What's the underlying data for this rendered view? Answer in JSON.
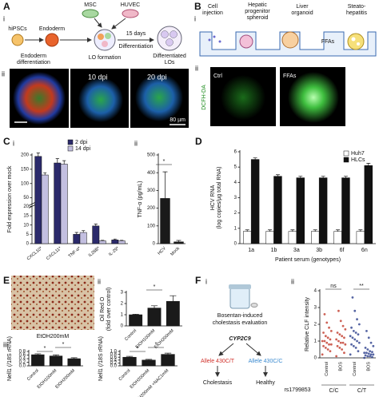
{
  "panels": {
    "A": {
      "label": "A",
      "i": {
        "label": "i",
        "hipsc": "hiPSCs",
        "endoderm": "Endoderm",
        "msc": "MSC",
        "huvec": "HUVEC",
        "endoderm_diff": [
          "Endoderm",
          "differentiation"
        ],
        "lo_formation": "LO formation",
        "days": "15 days",
        "differentiation": "Differentiation",
        "differentiated": [
          "Differentiated",
          "LOs"
        ]
      },
      "ii": {
        "label": "ii",
        "t1": "10 dpi",
        "t2": "20 dpi",
        "scale": "80 µm"
      }
    },
    "B": {
      "label": "B",
      "i": {
        "label": "i",
        "cell_injection": [
          "Cell",
          "injection"
        ],
        "spheroid": [
          "Hepatic",
          "progenitor",
          "spheroid"
        ],
        "organoid": [
          "Liver",
          "organoid"
        ],
        "steato": [
          "Steato-",
          "hepatitis"
        ],
        "ffas": "FFAs"
      },
      "ii": {
        "label": "ii",
        "stain": "DCFH-DA",
        "ctrl": "Ctrl",
        "ffas": "FFAs"
      }
    },
    "C": {
      "label": "C",
      "i": "i",
      "ii": "ii"
    },
    "D": {
      "label": "D"
    },
    "E": {
      "label": "E",
      "i": "i",
      "ii": "ii",
      "iii": "iii",
      "caption": "EtOH200mM"
    },
    "F": {
      "label": "F",
      "i": {
        "label": "i",
        "title": [
          "Bosentan-induced",
          "cholestasis evaluation"
        ],
        "gene": "CYP2C9",
        "allele_ct": "Allele 430C/T",
        "allele_cc": "Allele 430C/C",
        "cholestasis": "Cholestasis",
        "healthy": "Healthy"
      },
      "ii": "ii"
    }
  },
  "chart_data": [
    {
      "type": "bar",
      "y_label": "Fold expression over mock",
      "categories": [
        "CXCL10*",
        "CXCL11*",
        "TNF-α*",
        "IL28B*",
        "IL-29*"
      ],
      "series": [
        {
          "name": "2 dpi",
          "color": "#2b2a6b",
          "values": [
            195,
            172,
            5,
            9.5,
            2
          ],
          "errors": [
            12,
            15,
            1,
            1,
            0.5
          ]
        },
        {
          "name": "14 dpi",
          "color": "#c3bfe0",
          "values": [
            130,
            168,
            6,
            1.5,
            1.5
          ],
          "errors": [
            8,
            12,
            1,
            0.3,
            0.3
          ]
        }
      ],
      "ylim": [
        0,
        200
      ],
      "yticks": [
        0,
        5,
        10,
        15,
        20,
        50,
        100,
        150,
        200
      ],
      "y_break": 20
    },
    {
      "type": "bar",
      "y_label": "TNF-α (pg/mL)",
      "categories": [
        "HCV",
        "Mock"
      ],
      "values": [
        255,
        10
      ],
      "errors": [
        150,
        8
      ],
      "color": "#1a1a1a",
      "ylim": [
        0,
        500
      ],
      "yticks": [
        0,
        100,
        200,
        300,
        400,
        500
      ],
      "annotations": [
        "*"
      ]
    },
    {
      "type": "bar",
      "y_label": [
        "HCV RNA",
        "(log copies/µg total RNA)"
      ],
      "x_label": "Patient serum (genotypes)",
      "categories": [
        "1a",
        "1b",
        "3a",
        "3b",
        "6f",
        "6n"
      ],
      "series": [
        {
          "name": "Huh7",
          "color": "#ffffff",
          "values": [
            0.8,
            0.8,
            0.8,
            0.8,
            0.8,
            0.8
          ],
          "errors": [
            0.1,
            0.1,
            0.1,
            0.1,
            0.1,
            0.1
          ]
        },
        {
          "name": "HLCs",
          "color": "#111111",
          "values": [
            5.5,
            4.4,
            4.3,
            4.3,
            4.3,
            5.1
          ],
          "errors": [
            0.1,
            0.1,
            0.1,
            0.1,
            0.1,
            0.15
          ]
        }
      ],
      "ylim": [
        0,
        6
      ],
      "yticks": [
        0,
        1,
        2,
        3,
        4,
        5,
        6
      ],
      "legend": "top-right"
    },
    {
      "type": "bar",
      "y_label": [
        "Oil Red O",
        "(fold over control)"
      ],
      "categories": [
        "Control",
        "EtOH100mM",
        "EtOH200mM"
      ],
      "values": [
        1.0,
        1.6,
        2.2
      ],
      "errors": [
        0.05,
        0.2,
        0.5
      ],
      "color": "#1a1a1a",
      "ylim": [
        0,
        3
      ],
      "yticks": [
        0,
        1,
        2,
        3
      ],
      "annotations": [
        "*"
      ]
    },
    {
      "type": "bar",
      "y_label": "Nell1 (/18S rRNA)",
      "categories": [
        "Control",
        "EtOH100mM",
        "EtOH200mM"
      ],
      "values": [
        0.62,
        0.55,
        0.4
      ],
      "errors": [
        0.05,
        0.06,
        0.05
      ],
      "color": "#1a1a1a",
      "ylim": [
        0,
        0.8
      ],
      "yticks": [
        {
          "value": 0,
          "label": "0.0"
        },
        0.2,
        0.4,
        0.6,
        0.8
      ],
      "annotations": [
        "*",
        "*"
      ]
    },
    {
      "type": "bar",
      "y_label": "Nell1 (/18S rRNA)",
      "categories": [
        "Control",
        "EtOH200mM",
        "EtOH200mM +NAC1mM"
      ],
      "values": [
        0.6,
        0.4,
        0.8
      ],
      "errors": [
        0.06,
        0.05,
        0.08
      ],
      "color": "#1a1a1a",
      "ylim": [
        0,
        1
      ],
      "yticks": [
        {
          "value": 0,
          "label": "0.0"
        },
        0.2,
        0.4,
        0.6,
        0.8,
        {
          "value": 1,
          "label": "1.0"
        }
      ],
      "annotations": [
        "*",
        "*"
      ]
    },
    {
      "type": "strip",
      "y_label": "Relative CLF intensity",
      "categories": [
        "Control",
        "BOS",
        "Control",
        "BOS"
      ],
      "colors": [
        "#c0392b",
        "#c0392b",
        "#2c3e8c",
        "#2c3e8c"
      ],
      "values": [
        [
          0.2,
          0.4,
          0.5,
          0.6,
          0.7,
          0.8,
          0.8,
          0.9,
          1.0,
          1.0,
          1.1,
          1.2,
          1.3,
          1.5,
          1.6,
          1.8,
          2.1,
          2.6
        ],
        [
          0.1,
          0.3,
          0.5,
          0.6,
          0.7,
          0.8,
          0.9,
          0.9,
          1.0,
          1.1,
          1.2,
          1.3,
          1.4,
          1.5,
          1.7,
          1.9,
          2.2,
          2.8
        ],
        [
          0.2,
          0.4,
          0.6,
          0.7,
          0.8,
          0.9,
          1.0,
          1.1,
          1.2,
          1.3,
          1.4,
          1.5,
          1.6,
          1.8,
          2.0,
          2.3,
          2.8,
          3.6
        ],
        [
          0.0,
          0.05,
          0.1,
          0.1,
          0.15,
          0.2,
          0.2,
          0.25,
          0.3,
          0.3,
          0.35,
          0.4,
          0.5,
          0.6,
          0.7,
          0.9,
          1.2,
          1.6
        ]
      ],
      "ylim": [
        0,
        4
      ],
      "yticks": [
        0,
        1,
        2,
        3,
        4
      ],
      "annotations": [
        "ns",
        "**"
      ],
      "group_label": "rs1799853",
      "groups": [
        "C/C",
        "C/T"
      ]
    }
  ]
}
